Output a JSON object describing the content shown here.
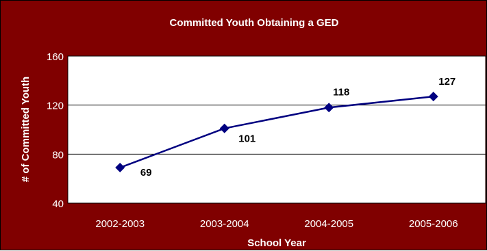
{
  "chart_data": {
    "type": "line",
    "title": "Committed Youth Obtaining a GED",
    "xlabel": "School Year",
    "ylabel": "# of Committed Youth",
    "categories": [
      "2002-2003",
      "2003-2004",
      "2004-2005",
      "2005-2006"
    ],
    "series": [
      {
        "values": [
          69,
          101,
          118,
          127
        ]
      }
    ],
    "ylim": [
      40,
      160
    ],
    "yticks": [
      40,
      80,
      120,
      160
    ],
    "grid": true,
    "legend": "none",
    "colors": {
      "frame": "#800000",
      "plot_area": "#ffffff",
      "line": "#000080",
      "gridline": "#000000",
      "text": "#ffffff",
      "data_label": "#000000"
    }
  }
}
